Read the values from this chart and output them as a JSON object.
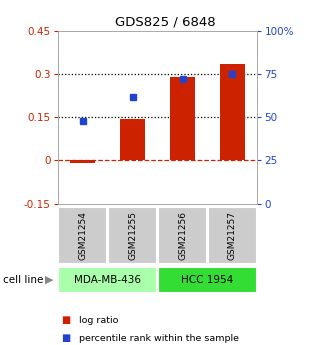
{
  "title": "GDS825 / 6848",
  "categories": [
    "GSM21254",
    "GSM21255",
    "GSM21256",
    "GSM21257"
  ],
  "log_ratio": [
    -0.01,
    0.145,
    0.29,
    0.335
  ],
  "percentile_rank": [
    0.48,
    0.62,
    0.72,
    0.75
  ],
  "ylim_left": [
    -0.15,
    0.45
  ],
  "ylim_right": [
    0,
    1.0
  ],
  "yticks_left": [
    -0.15,
    0,
    0.15,
    0.3,
    0.45
  ],
  "yticks_right": [
    0,
    0.25,
    0.5,
    0.75,
    1.0
  ],
  "ytick_labels_left": [
    "-0.15",
    "0",
    "0.15",
    "0.3",
    "0.45"
  ],
  "ytick_labels_right": [
    "0",
    "25",
    "50",
    "75",
    "100%"
  ],
  "hlines_dotted": [
    0.15,
    0.3
  ],
  "hline_dashed": 0,
  "bar_color": "#cc2200",
  "dot_color": "#2244cc",
  "cell_line_groups": [
    {
      "label": "MDA-MB-436",
      "indices": [
        0,
        1
      ],
      "color": "#aaffaa"
    },
    {
      "label": "HCC 1954",
      "indices": [
        2,
        3
      ],
      "color": "#33dd33"
    }
  ],
  "cell_line_label": "cell line",
  "legend_items": [
    {
      "label": "log ratio",
      "color": "#cc2200"
    },
    {
      "label": "percentile rank within the sample",
      "color": "#2244cc"
    }
  ],
  "bar_width": 0.5,
  "plot_bg": "#ffffff",
  "right_axis_color": "#2244cc",
  "left_axis_color": "#cc2200",
  "sample_box_color": "#cccccc",
  "sample_box_edge": "#ffffff"
}
